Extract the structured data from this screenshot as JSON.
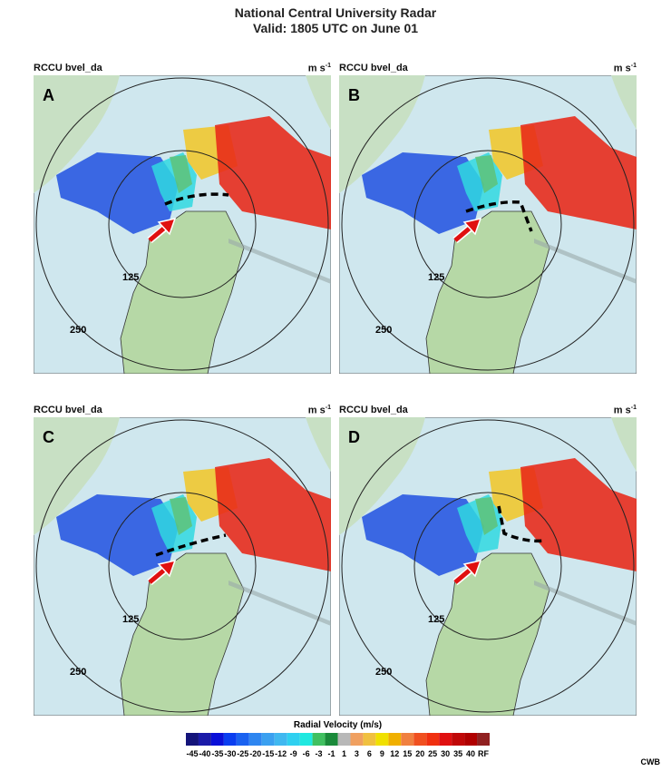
{
  "title": [
    "National Central University Radar",
    "Valid: 1805 UTC on June 01"
  ],
  "panels": [
    {
      "label": "A",
      "product": "RCCU  bvel_da",
      "units": "m s",
      "units_exp": "-1",
      "ranges": [
        "125",
        "250"
      ]
    },
    {
      "label": "B",
      "product": "RCCU  bvel_da",
      "units": "m s",
      "units_exp": "-1",
      "ranges": [
        "125",
        "250"
      ]
    },
    {
      "label": "C",
      "product": "RCCU  bvel_da",
      "units": "m s",
      "units_exp": "-1",
      "ranges": [
        "125",
        "250"
      ]
    },
    {
      "label": "D",
      "product": "RCCU  bvel_da",
      "units": "m s",
      "units_exp": "-1",
      "ranges": [
        "125",
        "250"
      ]
    }
  ],
  "colorbar": {
    "title": "Radial Velocity (m/s)",
    "labels": [
      "-45",
      "-40",
      "-35",
      "-30",
      "-25",
      "-20",
      "-15",
      "-12",
      "-9",
      "-6",
      "-3",
      "-1",
      "1",
      "3",
      "6",
      "9",
      "12",
      "15",
      "20",
      "25",
      "30",
      "35",
      "40",
      "RF"
    ],
    "colors": [
      "#14147a",
      "#1a1aa8",
      "#0a10d8",
      "#0a3ef0",
      "#1a62f0",
      "#2e86f0",
      "#3aa0f0",
      "#40b8f0",
      "#30d0f0",
      "#20e8e0",
      "#40c060",
      "#1a8a3a",
      "#b8b8b8",
      "#f0a060",
      "#f0c040",
      "#f0e000",
      "#f0b000",
      "#f08040",
      "#f05020",
      "#f03010",
      "#e01010",
      "#c00808",
      "#b00000",
      "#902020"
    ]
  },
  "credit": "CWB"
}
